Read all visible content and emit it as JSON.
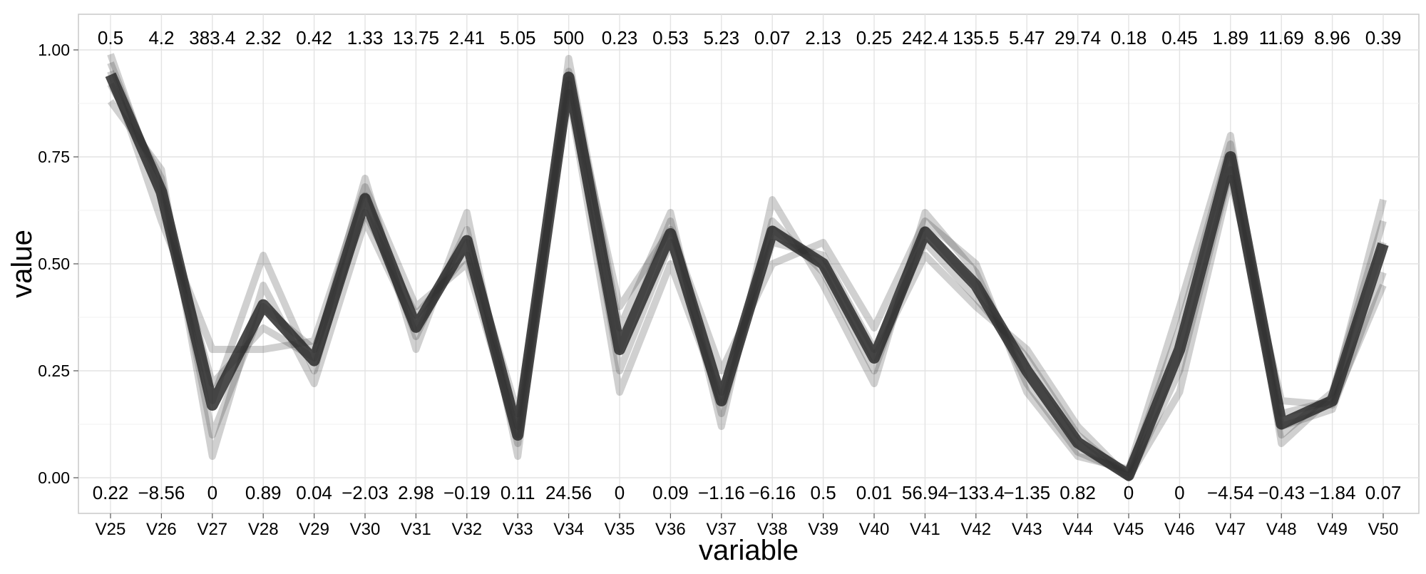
{
  "chart_data": {
    "type": "line",
    "subtype": "parallel-coordinates",
    "title": "",
    "xlabel": "variable",
    "ylabel": "value",
    "ylim": [
      0,
      1
    ],
    "yticks": [
      "0.00",
      "0.25",
      "0.50",
      "0.75",
      "1.00"
    ],
    "grid": true,
    "legend": "none",
    "line_color": "#2b2b2b",
    "background": "#ffffff",
    "grid_color": "#e3e3e3",
    "categories": [
      "V25",
      "V26",
      "V27",
      "V28",
      "V29",
      "V30",
      "V31",
      "V32",
      "V33",
      "V34",
      "V35",
      "V36",
      "V37",
      "V38",
      "V39",
      "V40",
      "V41",
      "V42",
      "V43",
      "V44",
      "V45",
      "V46",
      "V47",
      "V48",
      "V49",
      "V50"
    ],
    "max_labels": [
      "0.5",
      "4.2",
      "383.4",
      "2.32",
      "0.42",
      "1.33",
      "13.75",
      "2.41",
      "5.05",
      "500",
      "0.23",
      "0.53",
      "5.23",
      "0.07",
      "2.13",
      "0.25",
      "242.4",
      "135.5",
      "5.47",
      "29.74",
      "0.18",
      "0.45",
      "1.89",
      "11.69",
      "8.96",
      "0.39"
    ],
    "min_labels": [
      "0.22",
      "−8.56",
      "0",
      "0.89",
      "0.04",
      "−2.03",
      "2.98",
      "−0.19",
      "0.11",
      "24.56",
      "0",
      "0.09",
      "−1.16",
      "−6.16",
      "0.5",
      "0.01",
      "56.94",
      "−133.4",
      "−1.35",
      "0.82",
      "0",
      "0",
      "−4.54",
      "−0.43",
      "−1.84",
      "0.07"
    ],
    "series": [
      {
        "values": [
          0.97,
          0.67,
          0.18,
          0.52,
          0.25,
          0.66,
          0.33,
          0.58,
          0.08,
          0.95,
          0.3,
          0.6,
          0.15,
          0.6,
          0.48,
          0.25,
          0.58,
          0.45,
          0.25,
          0.08,
          0.0,
          0.3,
          0.75,
          0.15,
          0.18,
          0.55
        ]
      },
      {
        "values": [
          0.92,
          0.7,
          0.1,
          0.4,
          0.3,
          0.62,
          0.38,
          0.52,
          0.12,
          0.92,
          0.25,
          0.55,
          0.2,
          0.55,
          0.52,
          0.3,
          0.55,
          0.42,
          0.28,
          0.1,
          0.0,
          0.25,
          0.72,
          0.12,
          0.16,
          0.48
        ]
      },
      {
        "values": [
          0.99,
          0.65,
          0.22,
          0.35,
          0.28,
          0.7,
          0.3,
          0.62,
          0.05,
          0.98,
          0.35,
          0.62,
          0.12,
          0.65,
          0.45,
          0.22,
          0.62,
          0.48,
          0.22,
          0.06,
          0.01,
          0.35,
          0.78,
          0.1,
          0.2,
          0.6
        ]
      },
      {
        "values": [
          0.88,
          0.72,
          0.05,
          0.45,
          0.22,
          0.6,
          0.35,
          0.55,
          0.15,
          0.9,
          0.2,
          0.5,
          0.18,
          0.58,
          0.5,
          0.28,
          0.52,
          0.4,
          0.3,
          0.12,
          0.0,
          0.2,
          0.7,
          0.18,
          0.17,
          0.45
        ]
      },
      {
        "values": [
          0.95,
          0.6,
          0.3,
          0.3,
          0.32,
          0.68,
          0.4,
          0.5,
          0.1,
          0.93,
          0.4,
          0.58,
          0.25,
          0.5,
          0.55,
          0.35,
          0.6,
          0.5,
          0.2,
          0.05,
          0.02,
          0.4,
          0.8,
          0.08,
          0.19,
          0.65
        ]
      }
    ]
  }
}
